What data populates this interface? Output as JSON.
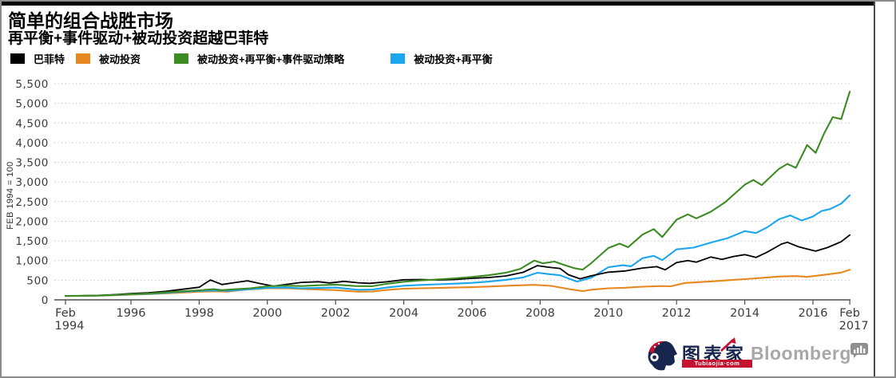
{
  "chart_data": {
    "type": "line",
    "title": "简单的组合战胜市场",
    "subtitle": "再平衡+事件驱动+被动投资超越巴菲特",
    "ylabel": "FEB 1994 = 100",
    "ylim": [
      0,
      5500
    ],
    "yticks": [
      0,
      500,
      1000,
      1500,
      2000,
      2500,
      3000,
      3500,
      4000,
      4500,
      5000,
      5500
    ],
    "xlim": [
      1994.08,
      2017.08
    ],
    "xticks": [
      {
        "x": 1994.08,
        "label": "Feb",
        "label2": "1994"
      },
      {
        "x": 1996,
        "label": "1996"
      },
      {
        "x": 1998,
        "label": "1998"
      },
      {
        "x": 2000,
        "label": "2000"
      },
      {
        "x": 2002,
        "label": "2002"
      },
      {
        "x": 2004,
        "label": "2004"
      },
      {
        "x": 2006,
        "label": "2006"
      },
      {
        "x": 2008,
        "label": "2008"
      },
      {
        "x": 2010,
        "label": "2010"
      },
      {
        "x": 2012,
        "label": "2012"
      },
      {
        "x": 2014,
        "label": "2014"
      },
      {
        "x": 2016,
        "label": "2016"
      },
      {
        "x": 2017.08,
        "label": "Feb",
        "label2": "2017"
      }
    ],
    "grid": {
      "horizontal": "dotted",
      "color": "#C6C6C6"
    },
    "legend_position": "top",
    "draw_order": [
      1,
      3,
      0,
      2
    ],
    "series": [
      {
        "name": "巴菲特",
        "color": "#000000",
        "points": [
          [
            1994.08,
            100
          ],
          [
            1994.5,
            104
          ],
          [
            1995,
            112
          ],
          [
            1995.5,
            132
          ],
          [
            1996,
            160
          ],
          [
            1996.5,
            180
          ],
          [
            1997,
            215
          ],
          [
            1997.5,
            268
          ],
          [
            1998,
            320
          ],
          [
            1998.33,
            505
          ],
          [
            1998.67,
            390
          ],
          [
            1999,
            435
          ],
          [
            1999.42,
            485
          ],
          [
            1999.75,
            420
          ],
          [
            2000.17,
            350
          ],
          [
            2000.5,
            385
          ],
          [
            2001,
            445
          ],
          [
            2001.5,
            460
          ],
          [
            2001.83,
            430
          ],
          [
            2002.25,
            470
          ],
          [
            2002.67,
            435
          ],
          [
            2003,
            420
          ],
          [
            2003.5,
            458
          ],
          [
            2004,
            512
          ],
          [
            2004.5,
            518
          ],
          [
            2005,
            505
          ],
          [
            2005.5,
            518
          ],
          [
            2006,
            548
          ],
          [
            2006.5,
            568
          ],
          [
            2007,
            608
          ],
          [
            2007.5,
            700
          ],
          [
            2007.92,
            870
          ],
          [
            2008.25,
            830
          ],
          [
            2008.58,
            800
          ],
          [
            2008.83,
            640
          ],
          [
            2009.17,
            535
          ],
          [
            2009.5,
            610
          ],
          [
            2010,
            705
          ],
          [
            2010.5,
            735
          ],
          [
            2011,
            810
          ],
          [
            2011.42,
            845
          ],
          [
            2011.67,
            765
          ],
          [
            2012,
            950
          ],
          [
            2012.33,
            1000
          ],
          [
            2012.58,
            960
          ],
          [
            2013,
            1090
          ],
          [
            2013.33,
            1030
          ],
          [
            2013.67,
            1105
          ],
          [
            2014,
            1150
          ],
          [
            2014.33,
            1080
          ],
          [
            2014.67,
            1220
          ],
          [
            2015.08,
            1420
          ],
          [
            2015.25,
            1465
          ],
          [
            2015.58,
            1350
          ],
          [
            2016.08,
            1240
          ],
          [
            2016.42,
            1330
          ],
          [
            2016.67,
            1420
          ],
          [
            2016.83,
            1480
          ],
          [
            2017.08,
            1650
          ]
        ]
      },
      {
        "name": "被动投资",
        "color": "#E8871F",
        "points": [
          [
            1994.08,
            100
          ],
          [
            1994.5,
            102
          ],
          [
            1995,
            106
          ],
          [
            1995.5,
            117
          ],
          [
            1996,
            132
          ],
          [
            1996.5,
            146
          ],
          [
            1997,
            163
          ],
          [
            1997.5,
            185
          ],
          [
            1998,
            208
          ],
          [
            1998.58,
            218
          ],
          [
            1998.83,
            208
          ],
          [
            1999.25,
            252
          ],
          [
            2000,
            296
          ],
          [
            2000.5,
            298
          ],
          [
            2001,
            278
          ],
          [
            2001.5,
            262
          ],
          [
            2002,
            248
          ],
          [
            2002.67,
            208
          ],
          [
            2003.08,
            212
          ],
          [
            2003.5,
            252
          ],
          [
            2004,
            285
          ],
          [
            2004.5,
            295
          ],
          [
            2005,
            302
          ],
          [
            2005.5,
            312
          ],
          [
            2006,
            322
          ],
          [
            2006.5,
            338
          ],
          [
            2007,
            358
          ],
          [
            2007.83,
            382
          ],
          [
            2008.33,
            355
          ],
          [
            2008.83,
            275
          ],
          [
            2009.25,
            222
          ],
          [
            2009.5,
            258
          ],
          [
            2010,
            295
          ],
          [
            2010.5,
            308
          ],
          [
            2011,
            335
          ],
          [
            2011.58,
            352
          ],
          [
            2011.83,
            345
          ],
          [
            2012.25,
            430
          ],
          [
            2012.5,
            442
          ],
          [
            2013,
            468
          ],
          [
            2013.5,
            500
          ],
          [
            2014,
            528
          ],
          [
            2014.5,
            560
          ],
          [
            2015,
            592
          ],
          [
            2015.5,
            605
          ],
          [
            2015.83,
            585
          ],
          [
            2016.08,
            610
          ],
          [
            2016.5,
            655
          ],
          [
            2016.83,
            695
          ],
          [
            2017.08,
            765
          ]
        ]
      },
      {
        "name": "被动投资+再平衡+事件驱动策略",
        "color": "#3D8B24",
        "points": [
          [
            1994.08,
            100
          ],
          [
            1994.5,
            103
          ],
          [
            1995,
            110
          ],
          [
            1995.5,
            124
          ],
          [
            1996,
            145
          ],
          [
            1996.5,
            162
          ],
          [
            1997,
            188
          ],
          [
            1997.5,
            218
          ],
          [
            1998,
            242
          ],
          [
            1998.42,
            272
          ],
          [
            1998.67,
            248
          ],
          [
            1999,
            268
          ],
          [
            1999.5,
            295
          ],
          [
            2000,
            345
          ],
          [
            2000.5,
            362
          ],
          [
            2001,
            352
          ],
          [
            2001.5,
            372
          ],
          [
            2002,
            388
          ],
          [
            2002.58,
            352
          ],
          [
            2003.08,
            348
          ],
          [
            2003.5,
            408
          ],
          [
            2004,
            460
          ],
          [
            2004.5,
            495
          ],
          [
            2005,
            520
          ],
          [
            2005.5,
            548
          ],
          [
            2006,
            582
          ],
          [
            2006.5,
            628
          ],
          [
            2007,
            692
          ],
          [
            2007.42,
            790
          ],
          [
            2007.83,
            1000
          ],
          [
            2008.08,
            930
          ],
          [
            2008.42,
            975
          ],
          [
            2008.67,
            900
          ],
          [
            2009,
            805
          ],
          [
            2009.25,
            770
          ],
          [
            2009.5,
            935
          ],
          [
            2010,
            1320
          ],
          [
            2010.33,
            1430
          ],
          [
            2010.58,
            1340
          ],
          [
            2011,
            1660
          ],
          [
            2011.33,
            1800
          ],
          [
            2011.58,
            1600
          ],
          [
            2012,
            2040
          ],
          [
            2012.33,
            2175
          ],
          [
            2012.58,
            2075
          ],
          [
            2013,
            2240
          ],
          [
            2013.42,
            2480
          ],
          [
            2014,
            2930
          ],
          [
            2014.25,
            3050
          ],
          [
            2014.5,
            2920
          ],
          [
            2015,
            3330
          ],
          [
            2015.25,
            3460
          ],
          [
            2015.5,
            3360
          ],
          [
            2015.83,
            3940
          ],
          [
            2016.08,
            3740
          ],
          [
            2016.33,
            4240
          ],
          [
            2016.58,
            4650
          ],
          [
            2016.83,
            4600
          ],
          [
            2017.08,
            5300
          ]
        ]
      },
      {
        "name": "被动投资+再平衡",
        "color": "#1BA6F0",
        "points": [
          [
            1994.08,
            100
          ],
          [
            1994.5,
            102
          ],
          [
            1995,
            108
          ],
          [
            1995.5,
            120
          ],
          [
            1996,
            140
          ],
          [
            1996.5,
            155
          ],
          [
            1997,
            176
          ],
          [
            1997.5,
            205
          ],
          [
            1998,
            228
          ],
          [
            1998.58,
            240
          ],
          [
            1998.83,
            228
          ],
          [
            1999.5,
            272
          ],
          [
            2000,
            305
          ],
          [
            2000.5,
            312
          ],
          [
            2001,
            295
          ],
          [
            2001.5,
            302
          ],
          [
            2002,
            312
          ],
          [
            2002.67,
            255
          ],
          [
            2003.08,
            262
          ],
          [
            2003.5,
            312
          ],
          [
            2004,
            360
          ],
          [
            2004.5,
            380
          ],
          [
            2005,
            395
          ],
          [
            2005.5,
            412
          ],
          [
            2006,
            432
          ],
          [
            2006.5,
            465
          ],
          [
            2007,
            510
          ],
          [
            2007.5,
            570
          ],
          [
            2007.92,
            690
          ],
          [
            2008.25,
            655
          ],
          [
            2008.58,
            625
          ],
          [
            2009.08,
            465
          ],
          [
            2009.5,
            565
          ],
          [
            2010,
            830
          ],
          [
            2010.42,
            880
          ],
          [
            2010.67,
            855
          ],
          [
            2011,
            1060
          ],
          [
            2011.33,
            1120
          ],
          [
            2011.58,
            1010
          ],
          [
            2012,
            1285
          ],
          [
            2012.5,
            1330
          ],
          [
            2013,
            1455
          ],
          [
            2013.5,
            1570
          ],
          [
            2014,
            1750
          ],
          [
            2014.33,
            1700
          ],
          [
            2014.67,
            1850
          ],
          [
            2015,
            2050
          ],
          [
            2015.33,
            2150
          ],
          [
            2015.67,
            2020
          ],
          [
            2016,
            2120
          ],
          [
            2016.25,
            2260
          ],
          [
            2016.5,
            2310
          ],
          [
            2016.83,
            2450
          ],
          [
            2017.08,
            2660
          ]
        ]
      }
    ]
  },
  "footer": {
    "brand_cn": "图表家",
    "brand_cn_sub": "Tubiaojia·com",
    "brand_en": "Bloomberg"
  }
}
